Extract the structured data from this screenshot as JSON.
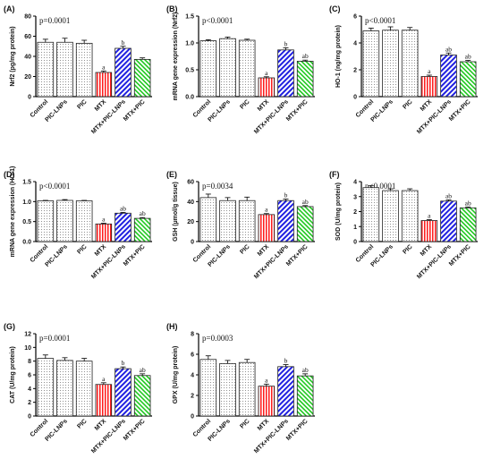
{
  "figure": {
    "categories": [
      "Control",
      "PIC-LNPs",
      "PIC",
      "MTX",
      "MTX+PIC-LNPs",
      "MTX+PIC"
    ],
    "colors": {
      "dotted": "#777777",
      "mtx": "#ff1a1a",
      "mtx_pic_lnps": "#2020e0",
      "mtx_pic": "#1ec81e",
      "axis": "#000000"
    }
  },
  "chart_data": [
    {
      "type": "bar",
      "panel": "(A)",
      "ylabel": "Nrf2 (pg/mg protein)",
      "ylim": [
        0,
        80
      ],
      "ticks": [
        0,
        20,
        40,
        60,
        80
      ],
      "stat": "p=0.0001",
      "values": [
        54,
        54,
        53,
        24,
        48,
        37
      ],
      "errors": [
        3,
        4,
        3,
        1.5,
        2,
        1.5
      ],
      "annotations": [
        "",
        "",
        "",
        "a",
        "b",
        ""
      ]
    },
    {
      "type": "bar",
      "panel": "(B)",
      "ylabel": "mRNA gene expression (Nrf2)",
      "ylim": [
        0,
        1.5
      ],
      "ticks": [
        0.0,
        0.5,
        1.0,
        1.5
      ],
      "stat": "p<0.0001",
      "values": [
        1.04,
        1.08,
        1.05,
        0.35,
        0.87,
        0.66
      ],
      "errors": [
        0.02,
        0.03,
        0.02,
        0.02,
        0.04,
        0.02
      ],
      "annotations": [
        "",
        "",
        "",
        "a",
        "b",
        "ab"
      ]
    },
    {
      "type": "bar",
      "panel": "(C)",
      "ylabel": "HO-1 (ng/mg protein)",
      "ylim": [
        0,
        6
      ],
      "ticks": [
        0,
        2,
        4,
        6
      ],
      "stat": "p<0.0001",
      "values": [
        4.9,
        4.95,
        4.95,
        1.5,
        3.1,
        2.6
      ],
      "errors": [
        0.2,
        0.25,
        0.2,
        0.1,
        0.15,
        0.1
      ],
      "annotations": [
        "",
        "",
        "",
        "a",
        "ab",
        "ab"
      ]
    },
    {
      "type": "bar",
      "panel": "(D)",
      "ylabel": "mRNA gene expression (HO-1)",
      "ylim": [
        0,
        1.5
      ],
      "ticks": [
        0.0,
        0.5,
        1.0,
        1.5
      ],
      "stat": "p<0.0001",
      "values": [
        1.02,
        1.03,
        1.02,
        0.44,
        0.71,
        0.58
      ],
      "errors": [
        0.01,
        0.02,
        0.01,
        0.02,
        0.02,
        0.02
      ],
      "annotations": [
        "",
        "",
        "",
        "a",
        "ab",
        "ab"
      ]
    },
    {
      "type": "bar",
      "panel": "(E)",
      "ylabel": "GSH (µmol/g tissue)",
      "ylim": [
        0,
        60
      ],
      "ticks": [
        0,
        20,
        40,
        60
      ],
      "stat": "p=0.0034",
      "values": [
        44,
        41,
        41,
        27,
        41,
        35
      ],
      "errors": [
        3.5,
        3,
        3.5,
        1,
        1.5,
        1
      ],
      "annotations": [
        "",
        "",
        "",
        "a",
        "b",
        "ab"
      ]
    },
    {
      "type": "bar",
      "panel": "(F)",
      "ylabel": "SOD (U/mg protein)",
      "ylim": [
        0,
        4
      ],
      "ticks": [
        0,
        1,
        2,
        3,
        4
      ],
      "stat": "p<0.0001",
      "values": [
        3.6,
        3.4,
        3.4,
        1.4,
        2.7,
        2.25
      ],
      "errors": [
        0.12,
        0.12,
        0.12,
        0.06,
        0.08,
        0.06
      ],
      "annotations": [
        "",
        "",
        "",
        "a",
        "ab",
        "ab"
      ]
    },
    {
      "type": "bar",
      "panel": "(G)",
      "ylabel": "CAT (U/mg protein)",
      "ylim": [
        0,
        12
      ],
      "ticks": [
        0,
        2,
        4,
        6,
        8,
        10,
        12
      ],
      "stat": "p=0.0001",
      "values": [
        8.4,
        8.1,
        8.0,
        4.6,
        6.9,
        5.9
      ],
      "errors": [
        0.5,
        0.4,
        0.4,
        0.25,
        0.25,
        0.25
      ],
      "annotations": [
        "",
        "",
        "",
        "a",
        "b",
        "ab"
      ]
    },
    {
      "type": "bar",
      "panel": "(H)",
      "ylabel": "GPX (U/mg protein)",
      "ylim": [
        0,
        8
      ],
      "ticks": [
        0,
        2,
        4,
        6,
        8
      ],
      "stat": "p=0.0003",
      "values": [
        5.5,
        5.1,
        5.2,
        2.9,
        4.8,
        3.9
      ],
      "errors": [
        0.35,
        0.3,
        0.3,
        0.2,
        0.2,
        0.2
      ],
      "annotations": [
        "",
        "",
        "",
        "a",
        "b",
        "ab"
      ]
    }
  ]
}
